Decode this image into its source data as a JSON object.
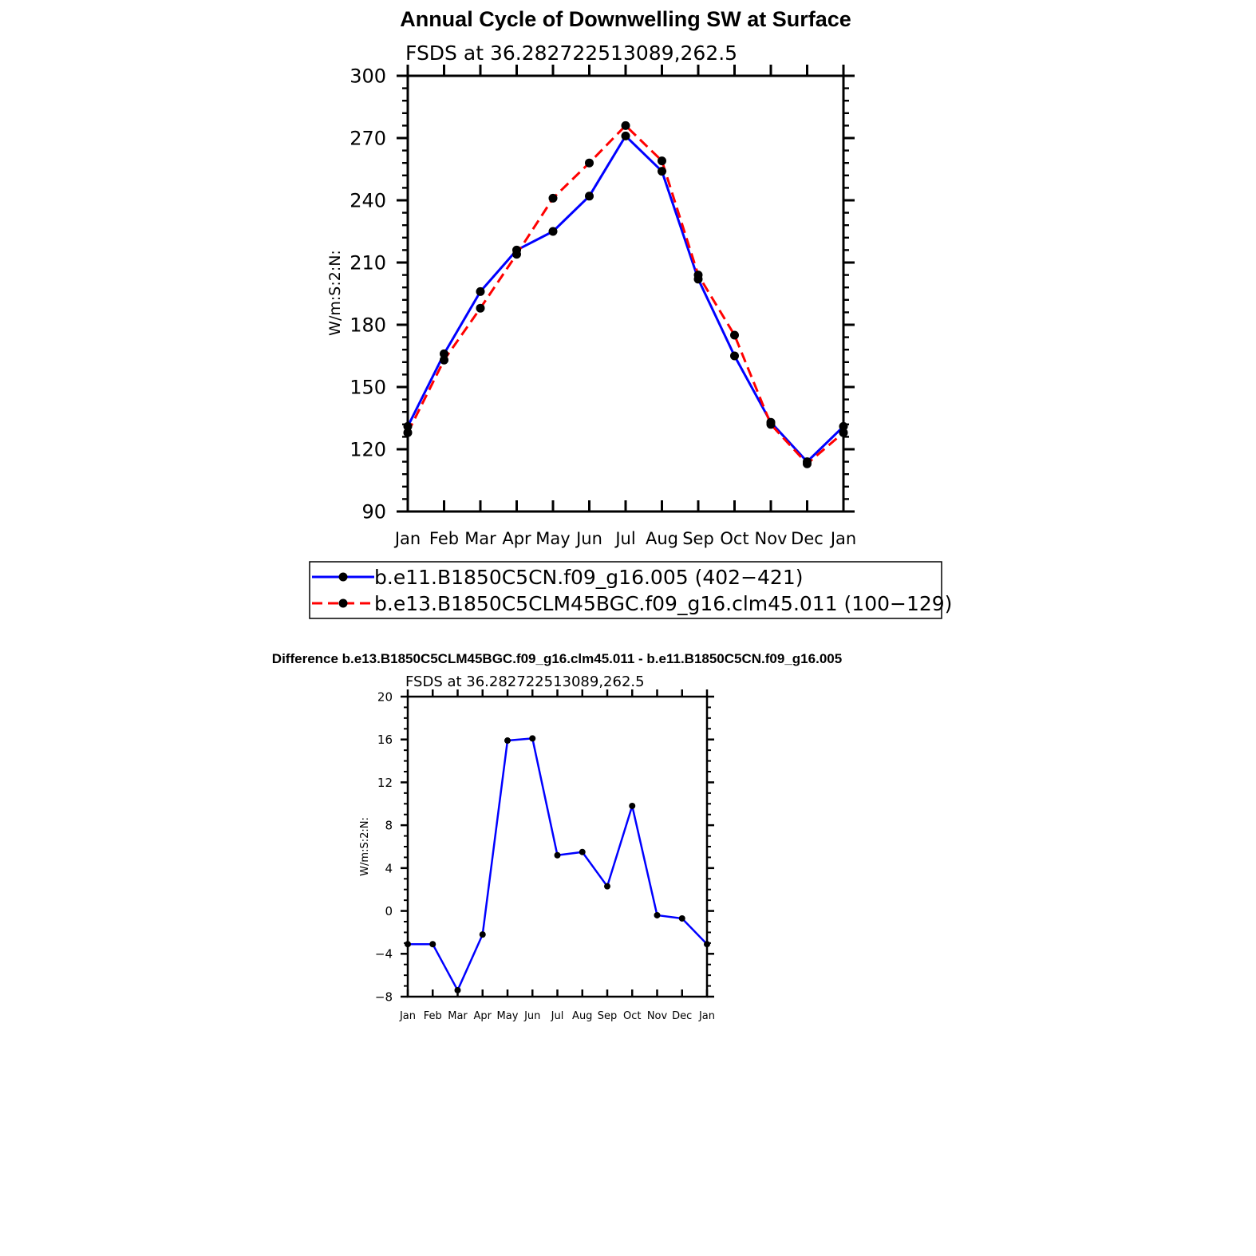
{
  "colors": {
    "series1": "#0000ff",
    "series2": "#ff0000",
    "marker": "#000000",
    "axis": "#000000"
  },
  "chart_data": [
    {
      "type": "line",
      "title": "Annual Cycle of Downwelling SW at Surface",
      "subtitle": "FSDS at 36.282722513089,262.5",
      "ylabel": "W/m:S:2:N:",
      "xlabel": "",
      "categories": [
        "Jan",
        "Feb",
        "Mar",
        "Apr",
        "May",
        "Jun",
        "Jul",
        "Aug",
        "Sep",
        "Oct",
        "Nov",
        "Dec",
        "Jan"
      ],
      "ylim": [
        90,
        300
      ],
      "yticks": [
        90,
        120,
        150,
        180,
        210,
        240,
        270,
        300
      ],
      "grid": false,
      "legend_position": "below",
      "series": [
        {
          "name": "b.e11.B1850C5CN.f09_g16.005 (402−421)",
          "line": "solid",
          "color": "#0000ff",
          "values": [
            131,
            166,
            196,
            216,
            225,
            242,
            271,
            254,
            202,
            165,
            133,
            114,
            131
          ]
        },
        {
          "name": "b.e13.B1850C5CLM45BGC.f09_g16.clm45.011 (100−129)",
          "line": "dashed",
          "color": "#ff0000",
          "values": [
            128,
            163,
            188,
            214,
            241,
            258,
            276,
            259,
            204,
            175,
            132,
            113,
            128
          ]
        }
      ]
    },
    {
      "type": "line",
      "title": "Difference b.e13.B1850C5CLM45BGC.f09_g16.clm45.011 - b.e11.B1850C5CN.f09_g16.005",
      "subtitle": "FSDS at 36.282722513089,262.5",
      "ylabel": "W/m:S:2:N:",
      "xlabel": "",
      "categories": [
        "Jan",
        "Feb",
        "Mar",
        "Apr",
        "May",
        "Jun",
        "Jul",
        "Aug",
        "Sep",
        "Oct",
        "Nov",
        "Dec",
        "Jan"
      ],
      "ylim": [
        -8,
        20
      ],
      "yticks": [
        -8,
        -4,
        0,
        4,
        8,
        12,
        16,
        20
      ],
      "ytick_labels": [
        "−8",
        "−4",
        "0",
        "4",
        "8",
        "12",
        "16",
        "20"
      ],
      "grid": false,
      "series": [
        {
          "line": "solid",
          "color": "#0000ff",
          "values": [
            -3.1,
            -3.1,
            -7.4,
            -2.2,
            15.9,
            16.1,
            5.2,
            5.5,
            2.3,
            9.8,
            -0.4,
            -0.7,
            -3.1
          ]
        }
      ]
    }
  ]
}
